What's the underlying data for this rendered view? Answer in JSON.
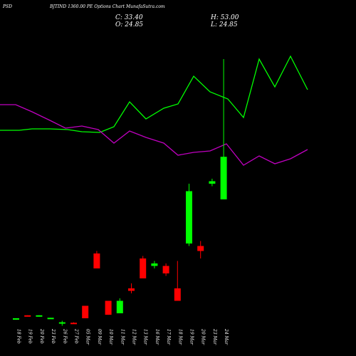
{
  "header": {
    "symbol": "PSD",
    "title": "BJTIND 1360.00 PE Options  Chart MunafaSutra.com",
    "close_label": "C: 33.40",
    "open_label": "O: 24.85",
    "high_label": "H: 53.00",
    "low_label": "L: 24.85"
  },
  "colors": {
    "background": "#000000",
    "bull": "#00ff00",
    "bear": "#ff0000",
    "line_green": "#00ff00",
    "line_magenta": "#c000c0",
    "text": "#ffffff"
  },
  "chart_data": {
    "type": "candlestick",
    "categories": [
      "18 Feb",
      "19 Feb",
      "20 Feb",
      "23 Feb",
      "26 Feb",
      "27 Feb",
      "05 Mar",
      "09 Mar",
      "10 Mar",
      "11 Mar",
      "12 Mar",
      "13 Mar",
      "16 Mar",
      "17 Mar",
      "18 Mar",
      "19 Mar",
      "20 Mar",
      "23 Mar",
      "24 Mar"
    ],
    "candles": [
      {
        "open": 0.8,
        "high": 1.0,
        "low": 0.7,
        "close": 1.0
      },
      {
        "open": 1.6,
        "high": 1.6,
        "low": 1.4,
        "close": 1.5
      },
      {
        "open": 1.5,
        "high": 1.6,
        "low": 1.4,
        "close": 1.6
      },
      {
        "open": 1.0,
        "high": 1.1,
        "low": 0.9,
        "close": 1.1
      },
      {
        "open": 0.1,
        "high": 0.5,
        "low": -0.5,
        "close": 0.2
      },
      {
        "open": 0.1,
        "high": 0.2,
        "low": 0.0,
        "close": 0.0
      },
      {
        "open": 3.5,
        "high": 3.5,
        "low": 1.0,
        "close": 1.0
      },
      {
        "open": 14.0,
        "high": 14.5,
        "low": 11.0,
        "close": 11.0
      },
      {
        "open": 4.5,
        "high": 4.5,
        "low": 1.7,
        "close": 1.7
      },
      {
        "open": 2.0,
        "high": 5.0,
        "low": 2.0,
        "close": 4.5
      },
      {
        "open": 7.0,
        "high": 8.0,
        "low": 6.0,
        "close": 6.5
      },
      {
        "open": 13.0,
        "high": 13.5,
        "low": 9.0,
        "close": 9.0
      },
      {
        "open": 11.5,
        "high": 12.5,
        "low": 11.0,
        "close": 12.0
      },
      {
        "open": 11.5,
        "high": 12.0,
        "low": 9.5,
        "close": 10.0
      },
      {
        "open": 7.0,
        "high": 12.5,
        "low": 4.5,
        "close": 4.5
      },
      {
        "open": 16.0,
        "high": 28.0,
        "low": 15.5,
        "close": 26.5
      },
      {
        "open": 15.5,
        "high": 16.5,
        "low": 13.0,
        "close": 14.5
      },
      {
        "open": 28.0,
        "high": 29.0,
        "low": 27.5,
        "close": 28.5
      },
      {
        "open": 24.85,
        "high": 53.0,
        "low": 24.85,
        "close": 33.4
      }
    ],
    "indicator_lines": [
      {
        "color": "#00ff00",
        "points": [
          [
            0,
            183
          ],
          [
            27,
            183
          ],
          [
            45,
            181
          ],
          [
            70,
            181
          ],
          [
            95,
            182
          ],
          [
            115,
            185
          ],
          [
            140,
            186
          ],
          [
            160,
            178
          ],
          [
            182,
            143
          ],
          [
            205,
            167
          ],
          [
            230,
            152
          ],
          [
            250,
            146
          ],
          [
            272,
            107
          ],
          [
            295,
            129
          ],
          [
            320,
            139
          ],
          [
            342,
            165
          ],
          [
            364,
            83
          ],
          [
            386,
            122
          ],
          [
            408,
            79
          ],
          [
            432,
            126
          ]
        ]
      },
      {
        "color": "#c000c0",
        "points": [
          [
            0,
            147
          ],
          [
            22,
            147
          ],
          [
            45,
            157
          ],
          [
            70,
            169
          ],
          [
            92,
            180
          ],
          [
            115,
            177
          ],
          [
            138,
            182
          ],
          [
            160,
            201
          ],
          [
            182,
            184
          ],
          [
            205,
            193
          ],
          [
            230,
            201
          ],
          [
            250,
            218
          ],
          [
            272,
            214
          ],
          [
            295,
            212
          ],
          [
            318,
            202
          ],
          [
            342,
            232
          ],
          [
            364,
            219
          ],
          [
            386,
            230
          ],
          [
            408,
            223
          ],
          [
            432,
            210
          ]
        ]
      }
    ]
  }
}
